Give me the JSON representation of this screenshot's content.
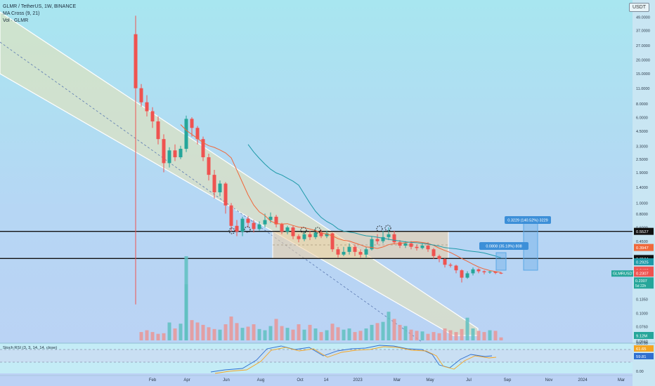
{
  "header": {
    "title": "GLMR / TetherUS, 1W, BINANCE",
    "ma_label": "MA Cross (9, 21)",
    "vol_label": "Vol · GLMR"
  },
  "currency_button": "USDT",
  "colors": {
    "up": "#26a69a",
    "down": "#ef5350",
    "ma_fast": "#f0673a",
    "ma_slow": "#1e9aa8",
    "channel_fill": "#e6e3b8",
    "range_fill": "#f2d0a0",
    "measure": "#5aa7e6"
  },
  "chart_data": {
    "type": "candlestick",
    "scale": "log",
    "x_ticks": [
      "Feb",
      "Apr",
      "Jun",
      "Aug",
      "Oct",
      "14",
      "2023",
      "Mar",
      "May",
      "Jul",
      "Sep",
      "Nov",
      "2024",
      "Mar"
    ],
    "y_ticks": [
      "49.0000",
      "37.0000",
      "27.0000",
      "20.0000",
      "15.0000",
      "11.0000",
      "8.0000",
      "6.0000",
      "4.5000",
      "3.3000",
      "2.5000",
      "1.9000",
      "1.4000",
      "1.0000",
      "0.8000",
      "0.6000",
      "0.4500",
      "0.1800",
      "0.1350",
      "0.1000",
      "0.0760",
      "0.0560"
    ],
    "price_tags": [
      {
        "label": "0.5527",
        "kind": "line"
      },
      {
        "label": "0.3947",
        "kind": "mafast"
      },
      {
        "label": "0.3134",
        "kind": "line"
      },
      {
        "label": "0.2925",
        "kind": "maslow"
      },
      {
        "label": "0.2462",
        "kind": "down"
      },
      {
        "label": "0.2307",
        "kind": "down"
      }
    ],
    "symbol_tag": {
      "label": "GLMRUSDT",
      "value": "0.2307",
      "countdown": "5d 22h"
    },
    "volume_tag": "9.12M",
    "horizontal_lines": [
      0.5527,
      0.3134
    ],
    "measure_labels": [
      "0.0808 (35.18%) 808",
      "0.3229 (140.52%) 3229"
    ],
    "candles": [
      [
        34,
        11,
        50,
        0.12
      ],
      [
        11,
        8.2,
        12,
        7.5
      ],
      [
        8.2,
        6.8,
        9.5,
        6.1
      ],
      [
        6.8,
        5.5,
        7.4,
        4.8
      ],
      [
        5.5,
        3.8,
        6.1,
        3.4
      ],
      [
        3.8,
        2.3,
        4.2,
        1.9
      ],
      [
        2.3,
        3.0,
        3.2,
        2.1
      ],
      [
        3.0,
        2.6,
        3.4,
        2.4
      ],
      [
        2.6,
        3.1,
        3.3,
        2.5
      ],
      [
        3.1,
        5.8,
        6.2,
        2.9
      ],
      [
        5.8,
        4.8,
        6.0,
        4.0
      ],
      [
        4.8,
        3.8,
        5.0,
        3.4
      ],
      [
        3.8,
        2.6,
        4.0,
        2.4
      ],
      [
        2.6,
        1.8,
        2.8,
        1.6
      ],
      [
        1.8,
        1.25,
        2.0,
        1.1
      ],
      [
        1.25,
        1.5,
        1.6,
        1.15
      ],
      [
        1.5,
        0.95,
        1.55,
        0.8
      ],
      [
        0.95,
        0.62,
        1.0,
        0.55
      ],
      [
        0.62,
        0.55,
        0.7,
        0.5
      ],
      [
        0.55,
        0.72,
        0.75,
        0.5
      ],
      [
        0.72,
        0.66,
        0.76,
        0.6
      ],
      [
        0.66,
        0.58,
        0.7,
        0.54
      ],
      [
        0.58,
        0.64,
        0.68,
        0.56
      ],
      [
        0.64,
        0.7,
        0.8,
        0.6
      ],
      [
        0.7,
        0.75,
        0.82,
        0.66
      ],
      [
        0.75,
        0.64,
        0.78,
        0.6
      ],
      [
        0.64,
        0.55,
        0.66,
        0.52
      ],
      [
        0.55,
        0.6,
        0.62,
        0.52
      ],
      [
        0.6,
        0.5,
        0.62,
        0.47
      ],
      [
        0.5,
        0.47,
        0.52,
        0.44
      ],
      [
        0.47,
        0.52,
        0.55,
        0.45
      ],
      [
        0.52,
        0.49,
        0.56,
        0.46
      ],
      [
        0.49,
        0.54,
        0.58,
        0.47
      ],
      [
        0.54,
        0.5,
        0.57,
        0.48
      ],
      [
        0.5,
        0.53,
        0.56,
        0.48
      ],
      [
        0.53,
        0.38,
        0.54,
        0.36
      ],
      [
        0.38,
        0.34,
        0.4,
        0.32
      ],
      [
        0.34,
        0.36,
        0.4,
        0.33
      ],
      [
        0.36,
        0.4,
        0.43,
        0.34
      ],
      [
        0.4,
        0.36,
        0.42,
        0.33
      ],
      [
        0.36,
        0.34,
        0.38,
        0.32
      ],
      [
        0.34,
        0.38,
        0.4,
        0.32
      ],
      [
        0.38,
        0.47,
        0.5,
        0.37
      ],
      [
        0.47,
        0.45,
        0.52,
        0.42
      ],
      [
        0.45,
        0.49,
        0.56,
        0.43
      ],
      [
        0.49,
        0.52,
        0.6,
        0.46
      ],
      [
        0.52,
        0.44,
        0.56,
        0.42
      ],
      [
        0.44,
        0.41,
        0.46,
        0.39
      ],
      [
        0.41,
        0.43,
        0.45,
        0.39
      ],
      [
        0.43,
        0.4,
        0.45,
        0.38
      ],
      [
        0.4,
        0.39,
        0.42,
        0.37
      ],
      [
        0.39,
        0.41,
        0.43,
        0.38
      ],
      [
        0.41,
        0.38,
        0.44,
        0.36
      ],
      [
        0.38,
        0.33,
        0.39,
        0.31
      ],
      [
        0.33,
        0.31,
        0.34,
        0.29
      ],
      [
        0.31,
        0.275,
        0.315,
        0.26
      ],
      [
        0.275,
        0.27,
        0.285,
        0.26
      ],
      [
        0.27,
        0.245,
        0.275,
        0.23
      ],
      [
        0.245,
        0.21,
        0.25,
        0.19
      ],
      [
        0.21,
        0.23,
        0.24,
        0.205
      ],
      [
        0.23,
        0.25,
        0.26,
        0.22
      ],
      [
        0.25,
        0.24,
        0.255,
        0.23
      ],
      [
        0.24,
        0.235,
        0.245,
        0.225
      ],
      [
        0.235,
        0.238,
        0.242,
        0.228
      ],
      [
        0.238,
        0.232,
        0.24,
        0.226
      ],
      [
        0.232,
        0.2307,
        0.236,
        0.226
      ]
    ],
    "volumes": [
      0.0,
      0.14,
      0.17,
      0.14,
      0.11,
      0.12,
      0.3,
      0.2,
      0.28,
      0.94,
      0.34,
      0.3,
      0.26,
      0.22,
      0.19,
      0.18,
      0.27,
      0.4,
      0.29,
      0.21,
      0.23,
      0.27,
      0.19,
      0.17,
      0.24,
      0.36,
      0.24,
      0.21,
      0.18,
      0.27,
      0.18,
      0.26,
      0.2,
      0.14,
      0.17,
      0.28,
      0.22,
      0.18,
      0.2,
      0.14,
      0.16,
      0.2,
      0.26,
      0.29,
      0.31,
      0.48,
      0.36,
      0.26,
      0.24,
      0.18,
      0.16,
      0.15,
      0.11,
      0.14,
      0.12,
      0.2,
      0.17,
      0.14,
      0.19,
      0.38,
      0.2,
      0.16,
      0.14,
      0.17,
      0.16,
      0.05
    ],
    "stoch_rsi": {
      "label": "Stoch RSI (3, 3, 14, 14, close)",
      "levels": [
        "100.00",
        "0.00"
      ],
      "k_value": "61.65",
      "d_value": "59.81"
    }
  }
}
